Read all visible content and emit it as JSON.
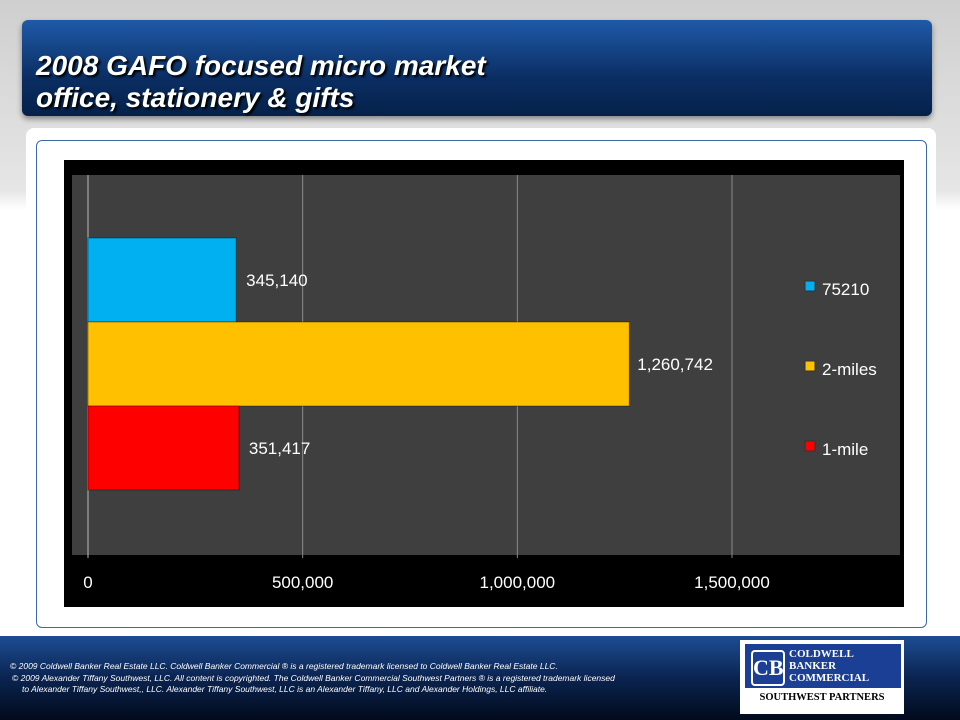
{
  "title": {
    "line1": "2008 GAFO focused micro market",
    "line2": "office, stationery & gifts"
  },
  "chart_data": {
    "type": "bar",
    "orientation": "horizontal",
    "categories": [
      "75210",
      "2-miles",
      "1-mile"
    ],
    "values": [
      345140,
      1260742,
      351417
    ],
    "labels": [
      "345,140",
      "1,260,742",
      "351,417"
    ],
    "colors": [
      "#00b0f0",
      "#ffc000",
      "#ff0000"
    ],
    "xlim": [
      0,
      1500000
    ],
    "xticks": [
      0,
      500000,
      1000000,
      1500000
    ],
    "xtick_labels": [
      "0",
      "500,000",
      "1,000,000",
      "1,500,000"
    ],
    "legend": [
      {
        "label": "75210",
        "color": "#00b0f0"
      },
      {
        "label": "2-miles",
        "color": "#ffc000"
      },
      {
        "label": "1-mile",
        "color": "#ff0000"
      }
    ],
    "legend_position": "right",
    "grid": true
  },
  "footer": {
    "line1": "©  2009 Coldwell Banker Real Estate  LLC. Coldwell Banker Commercial ® is a registered trademark licensed to Coldwell Banker Real Estate LLC.",
    "line2": "© 2009  Alexander Tiffany Southwest, LLC. All content is copyrighted. The Coldwell Banker Commercial Southwest Partners ® is a registered trademark licensed",
    "line3": "to Alexander Tiffany Southwest,, LLC.  Alexander Tiffany Southwest, LLC is an Alexander Tiffany, LLC and Alexander Holdings, LLC affiliate."
  },
  "logo": {
    "name": "COLDWELL BANKER COMMERCIAL",
    "sub": "SOUTHWEST PARTNERS"
  }
}
